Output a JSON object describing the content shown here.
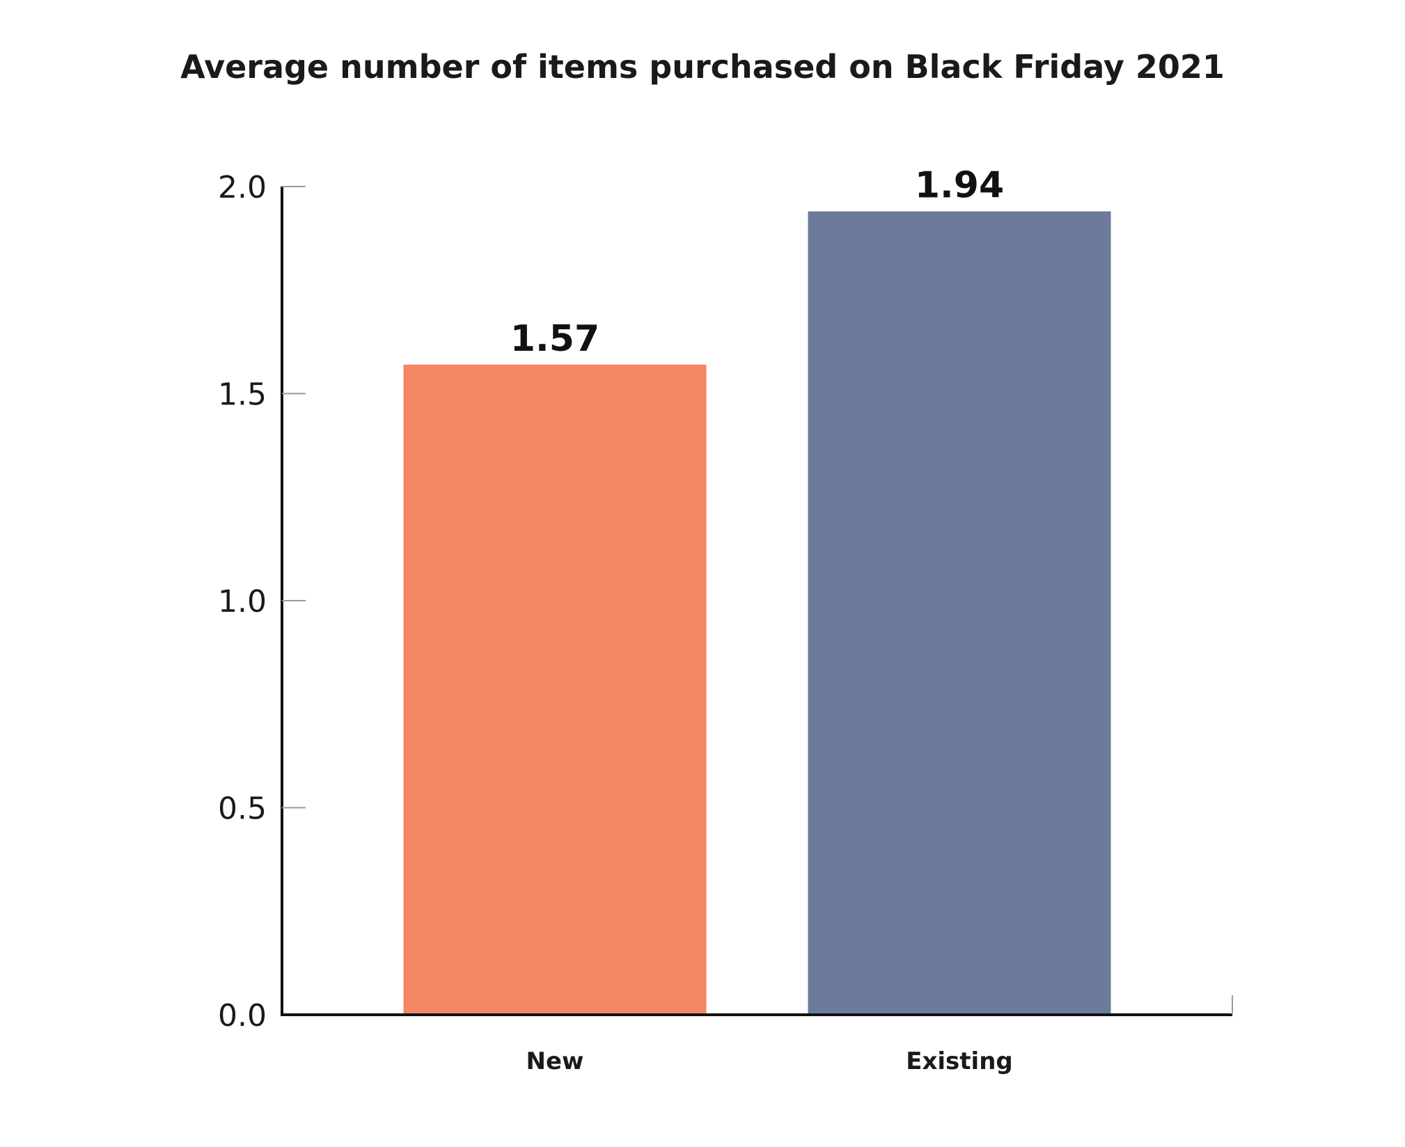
{
  "chart_data": {
    "type": "bar",
    "title": "Average number of items purchased on Black Friday 2021",
    "xlabel": "",
    "ylabel": "",
    "categories": [
      "New",
      "Existing"
    ],
    "values": [
      1.57,
      1.94
    ],
    "value_labels": [
      "1.57",
      "1.94"
    ],
    "bar_colors": [
      "#F48565",
      "#6C7B9C"
    ],
    "ylim": [
      0,
      2.0
    ],
    "y_ticks": [
      0.0,
      0.5,
      1.0,
      1.5,
      2.0
    ],
    "y_tick_labels": [
      "0.0",
      "0.5",
      "1.0",
      "1.5",
      "2.0"
    ],
    "grid": false,
    "legend": "none"
  }
}
